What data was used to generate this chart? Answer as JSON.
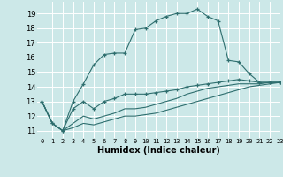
{
  "xlabel": "Humidex (Indice chaleur)",
  "background_color": "#cce8e8",
  "grid_color": "#ffffff",
  "line_color": "#2e6e6e",
  "xlim": [
    -0.5,
    23
  ],
  "ylim": [
    10.5,
    19.8
  ],
  "xticks": [
    0,
    1,
    2,
    3,
    4,
    5,
    6,
    7,
    8,
    9,
    10,
    11,
    12,
    13,
    14,
    15,
    16,
    17,
    18,
    19,
    20,
    21,
    22,
    23
  ],
  "yticks": [
    11,
    12,
    13,
    14,
    15,
    16,
    17,
    18,
    19
  ],
  "series": [
    {
      "x": [
        0,
        1,
        2,
        3,
        4,
        5,
        6,
        7,
        8,
        9,
        10,
        11,
        12,
        13,
        14,
        15,
        16,
        17,
        18,
        19,
        20,
        21,
        22,
        23
      ],
      "y": [
        13.0,
        11.5,
        11.0,
        13.0,
        14.2,
        15.5,
        16.2,
        16.3,
        16.3,
        17.9,
        18.0,
        18.5,
        18.8,
        19.0,
        19.0,
        19.3,
        18.8,
        18.5,
        15.8,
        15.7,
        14.9,
        14.3,
        14.3,
        14.3
      ],
      "marker": true
    },
    {
      "x": [
        0,
        1,
        2,
        3,
        4,
        5,
        6,
        7,
        8,
        9,
        10,
        11,
        12,
        13,
        14,
        15,
        16,
        17,
        18,
        19,
        20,
        21,
        22,
        23
      ],
      "y": [
        13.0,
        11.5,
        11.0,
        12.5,
        13.0,
        12.5,
        13.0,
        13.2,
        13.5,
        13.5,
        13.5,
        13.6,
        13.7,
        13.8,
        14.0,
        14.1,
        14.2,
        14.3,
        14.4,
        14.5,
        14.4,
        14.3,
        14.3,
        14.3
      ],
      "marker": true
    },
    {
      "x": [
        0,
        1,
        2,
        3,
        4,
        5,
        6,
        7,
        8,
        9,
        10,
        11,
        12,
        13,
        14,
        15,
        16,
        17,
        18,
        19,
        20,
        21,
        22,
        23
      ],
      "y": [
        13.0,
        11.5,
        11.0,
        11.5,
        12.0,
        11.8,
        12.0,
        12.2,
        12.5,
        12.5,
        12.6,
        12.8,
        13.0,
        13.2,
        13.5,
        13.7,
        13.9,
        14.0,
        14.1,
        14.2,
        14.2,
        14.2,
        14.3,
        14.3
      ],
      "marker": false
    },
    {
      "x": [
        0,
        1,
        2,
        3,
        4,
        5,
        6,
        7,
        8,
        9,
        10,
        11,
        12,
        13,
        14,
        15,
        16,
        17,
        18,
        19,
        20,
        21,
        22,
        23
      ],
      "y": [
        13.0,
        11.5,
        11.0,
        11.2,
        11.5,
        11.4,
        11.6,
        11.8,
        12.0,
        12.0,
        12.1,
        12.2,
        12.4,
        12.6,
        12.8,
        13.0,
        13.2,
        13.4,
        13.6,
        13.8,
        14.0,
        14.1,
        14.2,
        14.3
      ],
      "marker": false
    }
  ]
}
